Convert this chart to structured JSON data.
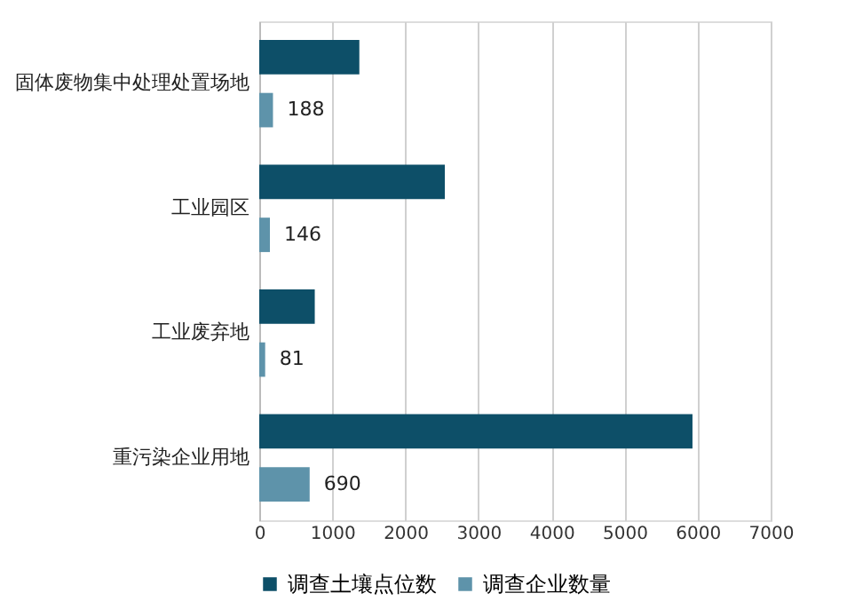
{
  "chart_data": {
    "type": "bar",
    "orientation": "horizontal",
    "categories": [
      "固体废物集中处理处置场地",
      "工业园区",
      "工业废弃地",
      "重污染企业用地"
    ],
    "series": [
      {
        "name": "调查土壤点位数",
        "color": "#0d4f68",
        "values": [
          1370,
          2540,
          760,
          5930
        ]
      },
      {
        "name": "调查企业数量",
        "color": "#5e93aa",
        "values": [
          188,
          146,
          81,
          690
        ],
        "value_labels": [
          "188",
          "146",
          "81",
          "690"
        ]
      }
    ],
    "xlim": [
      0,
      7000
    ],
    "xticks": [
      0,
      1000,
      2000,
      3000,
      4000,
      5000,
      6000,
      7000
    ],
    "grid": "x",
    "legend": "bottom"
  }
}
